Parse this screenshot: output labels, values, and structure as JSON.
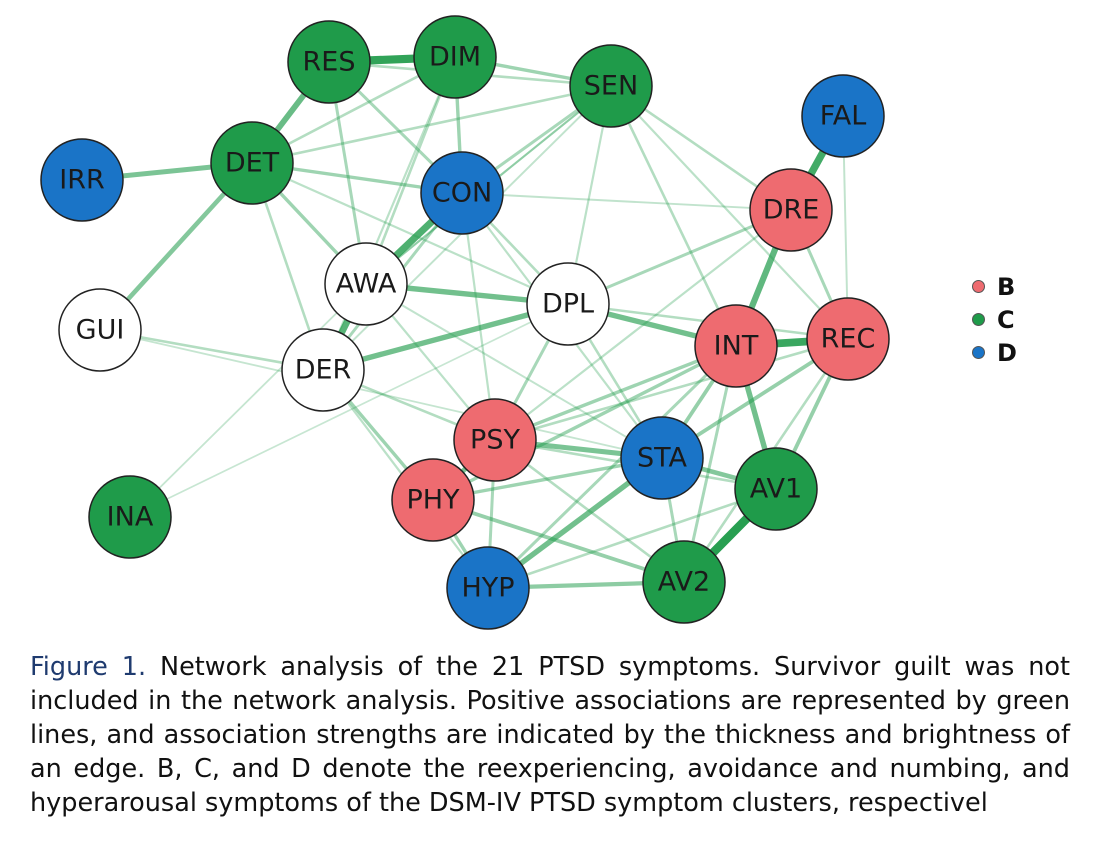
{
  "cluster_colors": {
    "B": "#ee6b70",
    "C": "#1f9b4a",
    "D": "#1a74c7",
    "none": "#ffffff"
  },
  "edge_color": "#1f9b4a",
  "nodes": [
    {
      "id": "RES",
      "label": "RES",
      "cluster": "C"
    },
    {
      "id": "DIM",
      "label": "DIM",
      "cluster": "C"
    },
    {
      "id": "SEN",
      "label": "SEN",
      "cluster": "C"
    },
    {
      "id": "FAL",
      "label": "FAL",
      "cluster": "D"
    },
    {
      "id": "IRR",
      "label": "IRR",
      "cluster": "D"
    },
    {
      "id": "DET",
      "label": "DET",
      "cluster": "C"
    },
    {
      "id": "CON",
      "label": "CON",
      "cluster": "D"
    },
    {
      "id": "DRE",
      "label": "DRE",
      "cluster": "B"
    },
    {
      "id": "AWA",
      "label": "AWA",
      "cluster": "none"
    },
    {
      "id": "DPL",
      "label": "DPL",
      "cluster": "none"
    },
    {
      "id": "GUI",
      "label": "GUI",
      "cluster": "none"
    },
    {
      "id": "INT",
      "label": "INT",
      "cluster": "B"
    },
    {
      "id": "REC",
      "label": "REC",
      "cluster": "B"
    },
    {
      "id": "DER",
      "label": "DER",
      "cluster": "none"
    },
    {
      "id": "PSY",
      "label": "PSY",
      "cluster": "B"
    },
    {
      "id": "STA",
      "label": "STA",
      "cluster": "D"
    },
    {
      "id": "AV1",
      "label": "AV1",
      "cluster": "C"
    },
    {
      "id": "PHY",
      "label": "PHY",
      "cluster": "B"
    },
    {
      "id": "INA",
      "label": "INA",
      "cluster": "C"
    },
    {
      "id": "AV2",
      "label": "AV2",
      "cluster": "C"
    },
    {
      "id": "HYP",
      "label": "HYP",
      "cluster": "D"
    }
  ],
  "edges": [
    {
      "source": "RES",
      "target": "DIM",
      "strength": 0.9
    },
    {
      "source": "RES",
      "target": "DET",
      "strength": 0.6
    },
    {
      "source": "IRR",
      "target": "DET",
      "strength": 0.5
    },
    {
      "source": "DET",
      "target": "GUI",
      "strength": 0.45
    },
    {
      "source": "FAL",
      "target": "DRE",
      "strength": 0.8
    },
    {
      "source": "DRE",
      "target": "INT",
      "strength": 0.65
    },
    {
      "source": "INT",
      "target": "REC",
      "strength": 0.85
    },
    {
      "source": "CON",
      "target": "AWA",
      "strength": 0.75
    },
    {
      "source": "AWA",
      "target": "DER",
      "strength": 0.7
    },
    {
      "source": "AWA",
      "target": "DPL",
      "strength": 0.55
    },
    {
      "source": "DER",
      "target": "DPL",
      "strength": 0.55
    },
    {
      "source": "DPL",
      "target": "INT",
      "strength": 0.55
    },
    {
      "source": "INT",
      "target": "AV1",
      "strength": 0.55
    },
    {
      "source": "AV1",
      "target": "AV2",
      "strength": 0.95
    },
    {
      "source": "PSY",
      "target": "STA",
      "strength": 0.5
    },
    {
      "source": "PSY",
      "target": "PHY",
      "strength": 0.5
    },
    {
      "source": "STA",
      "target": "HYP",
      "strength": 0.55
    },
    {
      "source": "STA",
      "target": "AV1",
      "strength": 0.45
    },
    {
      "source": "PHY",
      "target": "AV2",
      "strength": 0.35
    },
    {
      "source": "HYP",
      "target": "AV2",
      "strength": 0.4
    },
    {
      "source": "DET",
      "target": "CON",
      "strength": 0.3
    },
    {
      "source": "DET",
      "target": "AWA",
      "strength": 0.3
    },
    {
      "source": "DET",
      "target": "DIM",
      "strength": 0.2
    },
    {
      "source": "DET",
      "target": "SEN",
      "strength": 0.2
    },
    {
      "source": "DET",
      "target": "DPL",
      "strength": 0.15
    },
    {
      "source": "RES",
      "target": "SEN",
      "strength": 0.2
    },
    {
      "source": "RES",
      "target": "CON",
      "strength": 0.25
    },
    {
      "source": "RES",
      "target": "AWA",
      "strength": 0.25
    },
    {
      "source": "DIM",
      "target": "SEN",
      "strength": 0.3
    },
    {
      "source": "DIM",
      "target": "CON",
      "strength": 0.3
    },
    {
      "source": "DIM",
      "target": "AWA",
      "strength": 0.2
    },
    {
      "source": "DIM",
      "target": "DER",
      "strength": 0.15
    },
    {
      "source": "SEN",
      "target": "CON",
      "strength": 0.25
    },
    {
      "source": "SEN",
      "target": "AWA",
      "strength": 0.15
    },
    {
      "source": "SEN",
      "target": "INT",
      "strength": 0.2
    },
    {
      "source": "SEN",
      "target": "DER",
      "strength": 0.12
    },
    {
      "source": "CON",
      "target": "DER",
      "strength": 0.25
    },
    {
      "source": "CON",
      "target": "DPL",
      "strength": 0.2
    },
    {
      "source": "CON",
      "target": "PSY",
      "strength": 0.15
    },
    {
      "source": "CON",
      "target": "STA",
      "strength": 0.15
    },
    {
      "source": "CON",
      "target": "DRE",
      "strength": 0.12
    },
    {
      "source": "AWA",
      "target": "PSY",
      "strength": 0.15
    },
    {
      "source": "AWA",
      "target": "STA",
      "strength": 0.12
    },
    {
      "source": "AWA",
      "target": "SEN",
      "strength": 0.12
    },
    {
      "source": "GUI",
      "target": "DER",
      "strength": 0.2
    },
    {
      "source": "GUI",
      "target": "STA",
      "strength": 0.1
    },
    {
      "source": "DER",
      "target": "PHY",
      "strength": 0.3
    },
    {
      "source": "DER",
      "target": "PSY",
      "strength": 0.2
    },
    {
      "source": "DER",
      "target": "HYP",
      "strength": 0.15
    },
    {
      "source": "DER",
      "target": "DET",
      "strength": 0.2
    },
    {
      "source": "DPL",
      "target": "DRE",
      "strength": 0.25
    },
    {
      "source": "DPL",
      "target": "PSY",
      "strength": 0.25
    },
    {
      "source": "DPL",
      "target": "STA",
      "strength": 0.2
    },
    {
      "source": "DPL",
      "target": "REC",
      "strength": 0.2
    },
    {
      "source": "DPL",
      "target": "SEN",
      "strength": 0.15
    },
    {
      "source": "DRE",
      "target": "REC",
      "strength": 0.25
    },
    {
      "source": "DRE",
      "target": "SEN",
      "strength": 0.2
    },
    {
      "source": "DRE",
      "target": "PSY",
      "strength": 0.15
    },
    {
      "source": "INT",
      "target": "PSY",
      "strength": 0.3
    },
    {
      "source": "INT",
      "target": "PHY",
      "strength": 0.3
    },
    {
      "source": "INT",
      "target": "STA",
      "strength": 0.35
    },
    {
      "source": "INT",
      "target": "HYP",
      "strength": 0.25
    },
    {
      "source": "INT",
      "target": "AV2",
      "strength": 0.25
    },
    {
      "source": "REC",
      "target": "STA",
      "strength": 0.35
    },
    {
      "source": "REC",
      "target": "AV1",
      "strength": 0.35
    },
    {
      "source": "REC",
      "target": "PSY",
      "strength": 0.2
    },
    {
      "source": "REC",
      "target": "AV2",
      "strength": 0.2
    },
    {
      "source": "REC",
      "target": "SEN",
      "strength": 0.15
    },
    {
      "source": "REC",
      "target": "FAL",
      "strength": 0.12
    },
    {
      "source": "PSY",
      "target": "HYP",
      "strength": 0.25
    },
    {
      "source": "PSY",
      "target": "AV2",
      "strength": 0.2
    },
    {
      "source": "PSY",
      "target": "AV1",
      "strength": 0.2
    },
    {
      "source": "PHY",
      "target": "STA",
      "strength": 0.3
    },
    {
      "source": "PHY",
      "target": "HYP",
      "strength": 0.3
    },
    {
      "source": "STA",
      "target": "AV2",
      "strength": 0.25
    },
    {
      "source": "INA",
      "target": "AWA",
      "strength": 0.1
    },
    {
      "source": "INA",
      "target": "DPL",
      "strength": 0.08
    },
    {
      "source": "HYP",
      "target": "AV1",
      "strength": 0.2
    }
  ],
  "legend": [
    {
      "label": "B",
      "cluster": "B"
    },
    {
      "label": "C",
      "cluster": "C"
    },
    {
      "label": "D",
      "cluster": "D"
    }
  ],
  "caption": {
    "label": "Figure 1.",
    "text": "Network analysis of the 21 PTSD symptoms. Survivor guilt was not included in the network analysis. Positive associations are represented by green lines, and association strengths are indicated by the thickness and brightness of an edge. B, C, and D denote the reexperiencing, avoidance and numbing, and hyperarousal symptoms of the DSM-IV PTSD symptom clusters, respectivel"
  }
}
